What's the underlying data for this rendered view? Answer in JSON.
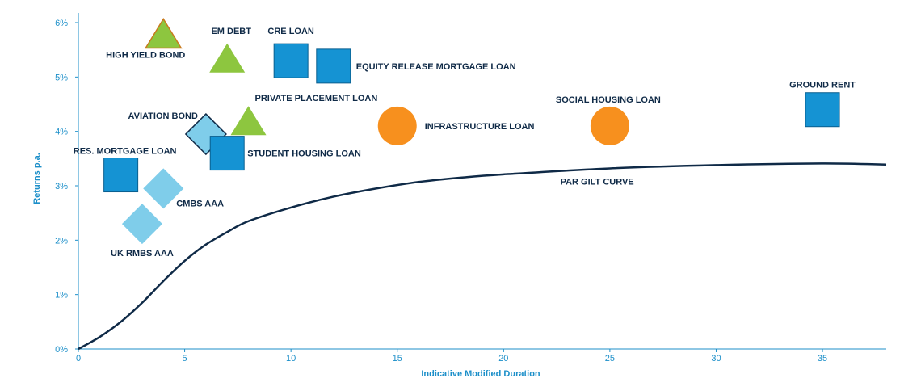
{
  "colors": {
    "axis": "#1c8fc9",
    "curve": "#0f2a47",
    "label": "#0f2a47",
    "square": "#1593d3",
    "triangle": "#8dc63f",
    "circle": "#f7901e",
    "diamond_light": "#7fcdea",
    "diamond_dark": "#0f2a47"
  },
  "chart_data": {
    "type": "scatter",
    "title": "",
    "xlabel": "Indicative Modified Duration",
    "ylabel": "Returns p.a.",
    "xlim": [
      0,
      38
    ],
    "ylim": [
      0,
      6
    ],
    "x_ticks": [
      0,
      5,
      10,
      15,
      20,
      25,
      30,
      35
    ],
    "x_tick_labels": [
      "0",
      "5",
      "10",
      "15",
      "20",
      "25",
      "30",
      "35"
    ],
    "y_ticks": [
      0,
      1,
      2,
      3,
      4,
      5,
      6
    ],
    "y_tick_labels": [
      "0%",
      "1%",
      "2%",
      "3%",
      "4%",
      "5%",
      "6%"
    ],
    "grid": false,
    "points": [
      {
        "label": "HIGH YIELD BOND",
        "x": 4.0,
        "y": 5.8,
        "shape": "triangle"
      },
      {
        "label": "EM DEBT",
        "x": 7.0,
        "y": 5.35,
        "shape": "triangle"
      },
      {
        "label": "CRE LOAN",
        "x": 10.0,
        "y": 5.3,
        "shape": "square"
      },
      {
        "label": "EQUITY RELEASE MORTGAGE LOAN",
        "x": 12.0,
        "y": 5.2,
        "shape": "square"
      },
      {
        "label": "PRIVATE PLACEMENT LOAN",
        "x": 8.0,
        "y": 4.2,
        "shape": "triangle"
      },
      {
        "label": "AVIATION BOND",
        "x": 6.0,
        "y": 3.95,
        "shape": "diamond"
      },
      {
        "label": "STUDENT HOUSING LOAN",
        "x": 7.0,
        "y": 3.6,
        "shape": "square"
      },
      {
        "label": "RES. MORTGAGE LOAN",
        "x": 2.0,
        "y": 3.2,
        "shape": "square"
      },
      {
        "label": "CMBS AAA",
        "x": 4.0,
        "y": 2.95,
        "shape": "diamond"
      },
      {
        "label": "UK RMBS AAA",
        "x": 3.0,
        "y": 2.3,
        "shape": "diamond"
      },
      {
        "label": "INFRASTRUCTURE LOAN",
        "x": 15.0,
        "y": 4.1,
        "shape": "circle"
      },
      {
        "label": "SOCIAL HOUSING LOAN",
        "x": 25.0,
        "y": 4.1,
        "shape": "circle"
      },
      {
        "label": "GROUND RENT",
        "x": 35.0,
        "y": 4.4,
        "shape": "square"
      }
    ],
    "series": [
      {
        "name": "PAR GILT CURVE",
        "x": [
          0,
          1,
          2,
          3,
          4,
          5,
          6,
          7,
          8,
          10,
          12,
          14,
          16,
          18,
          20,
          25,
          30,
          35,
          38
        ],
        "y": [
          0,
          0.22,
          0.5,
          0.85,
          1.25,
          1.62,
          1.92,
          2.15,
          2.35,
          2.6,
          2.8,
          2.95,
          3.07,
          3.15,
          3.21,
          3.32,
          3.38,
          3.41,
          3.39
        ]
      }
    ]
  }
}
